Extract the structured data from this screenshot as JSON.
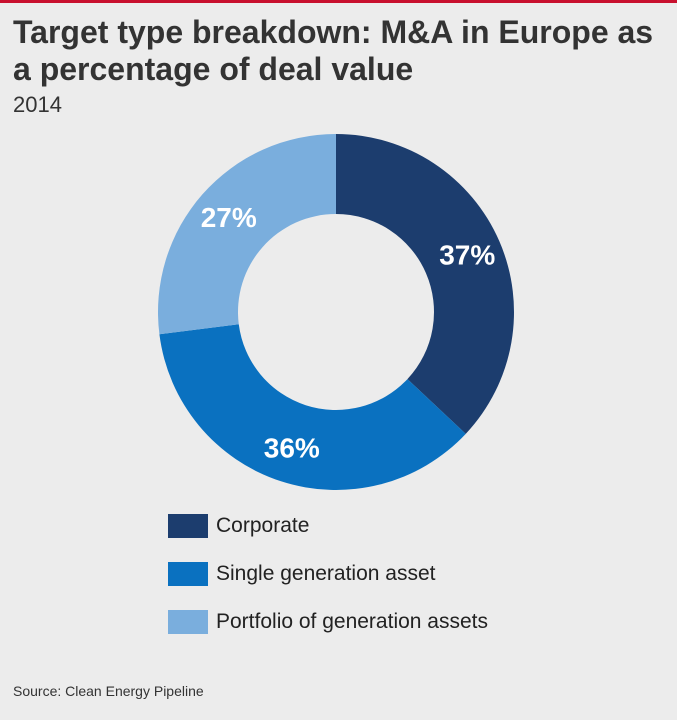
{
  "header": {
    "title": "Target type breakdown: M&A in Europe as a percentage of deal value",
    "subtitle": "2014"
  },
  "chart_data": {
    "type": "pie",
    "title": "Target type breakdown: M&A in Europe as a percentage of deal value",
    "subtitle": "2014",
    "donut": true,
    "legend_position": "bottom",
    "slices": [
      {
        "name": "Corporate",
        "value": 37,
        "label": "37%",
        "color": "#1c3d6e"
      },
      {
        "name": "Single generation asset",
        "value": 36,
        "label": "36%",
        "color": "#0a71c0"
      },
      {
        "name": "Portfolio of generation assets",
        "value": 27,
        "label": "27%",
        "color": "#7aaedd"
      }
    ]
  },
  "footer": {
    "source": "Source: Clean Energy Pipeline"
  }
}
